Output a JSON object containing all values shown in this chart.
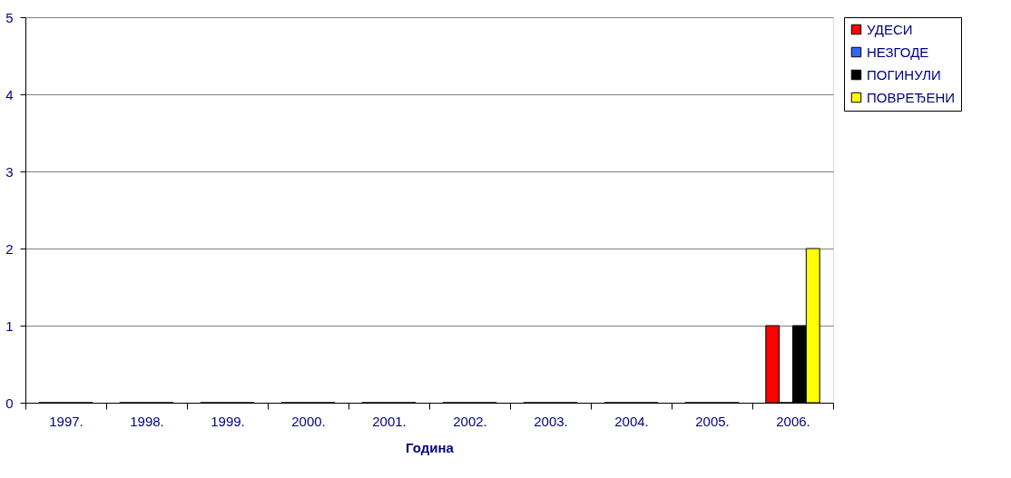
{
  "chart_data": {
    "type": "bar",
    "xlabel": "Година",
    "categories": [
      "1997.",
      "1998.",
      "1999.",
      "2000.",
      "2001.",
      "2002.",
      "2003.",
      "2004.",
      "2005.",
      "2006."
    ],
    "series": [
      {
        "name": "УДЕСИ",
        "color": "#ff0000",
        "values": [
          0,
          0,
          0,
          0,
          0,
          0,
          0,
          0,
          0,
          1
        ]
      },
      {
        "name": "НЕЗГОДЕ",
        "color": "#3366ff",
        "values": [
          0,
          0,
          0,
          0,
          0,
          0,
          0,
          0,
          0,
          0
        ]
      },
      {
        "name": "ПОГИНУЛИ",
        "color": "#000000",
        "values": [
          0,
          0,
          0,
          0,
          0,
          0,
          0,
          0,
          0,
          1
        ]
      },
      {
        "name": "ПОВРЕЂЕНИ",
        "color": "#ffff00",
        "values": [
          0,
          0,
          0,
          0,
          0,
          0,
          0,
          0,
          0,
          2
        ]
      }
    ],
    "ylim": [
      0,
      5
    ],
    "yticks": [
      0,
      1,
      2,
      3,
      4,
      5
    ],
    "grid": "y",
    "legend": "top right"
  }
}
